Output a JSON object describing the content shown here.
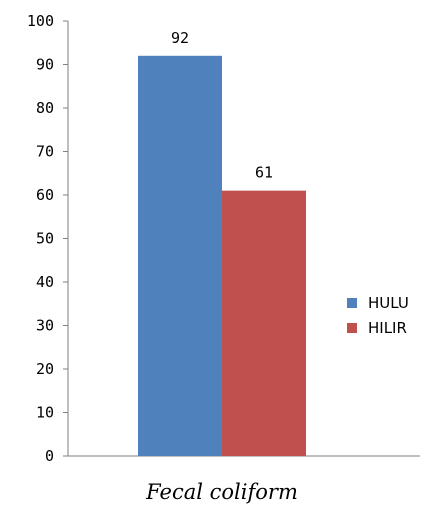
{
  "chart_data": {
    "type": "bar",
    "title": "",
    "categories": [
      "Fecal coliform"
    ],
    "series": [
      {
        "name": "HULU",
        "values": [
          92
        ],
        "color": "#4f81bd"
      },
      {
        "name": "HILIR",
        "values": [
          61
        ],
        "color": "#c0504d"
      }
    ],
    "xlabel": "Fecal coliform",
    "ylabel": "",
    "ylim": [
      0,
      100
    ],
    "yticks": [
      "0",
      "10",
      "20",
      "30",
      "40",
      "50",
      "60",
      "70",
      "80",
      "90",
      "100"
    ],
    "data_labels": [
      "92",
      "61"
    ],
    "legend_position": "right",
    "grid": false
  }
}
